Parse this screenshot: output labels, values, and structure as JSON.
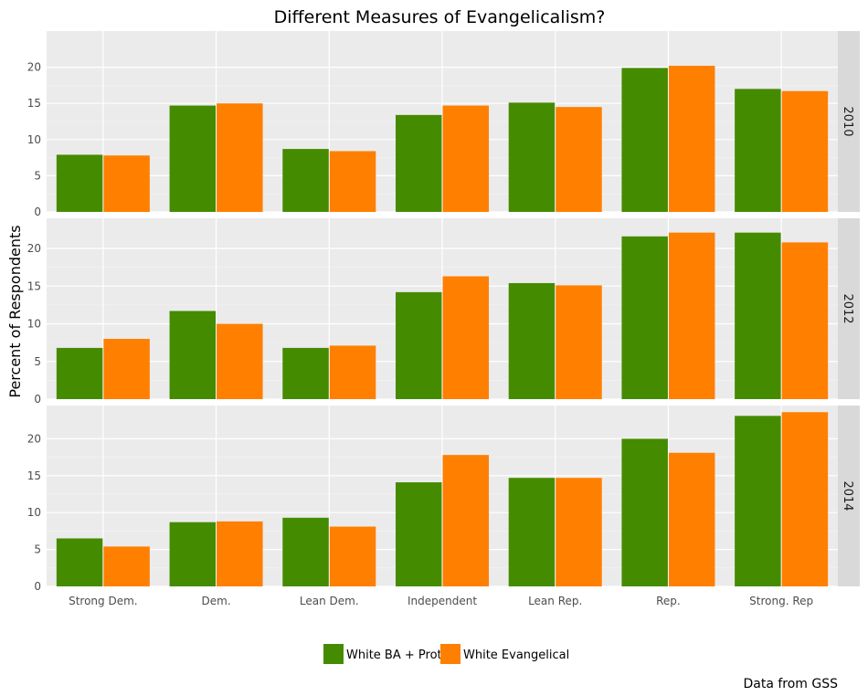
{
  "chart_data": {
    "type": "bar",
    "title": "Different Measures of Evangelicalism?",
    "xlabel": "",
    "ylabel": "Percent of Respondents",
    "caption": "Data from GSS",
    "categories": [
      "Strong Dem.",
      "Dem.",
      "Lean Dem.",
      "Independent",
      "Lean Rep.",
      "Rep.",
      "Strong. Rep"
    ],
    "colors": {
      "White BA + Prot": "#458b00",
      "White Evangelical": "#ff7f00"
    },
    "series_names": [
      "White BA + Prot",
      "White Evangelical"
    ],
    "panels": [
      {
        "label": "2010",
        "ylim": [
          0,
          25
        ],
        "yticks": [
          0,
          5,
          10,
          15,
          20
        ],
        "series": [
          {
            "name": "White BA + Prot",
            "values": [
              7.9,
              14.7,
              8.7,
              13.4,
              15.1,
              19.9,
              17.0
            ]
          },
          {
            "name": "White Evangelical",
            "values": [
              7.8,
              15.0,
              8.4,
              14.7,
              14.5,
              20.2,
              16.7
            ]
          }
        ]
      },
      {
        "label": "2012",
        "ylim": [
          0,
          24
        ],
        "yticks": [
          0,
          5,
          10,
          15,
          20
        ],
        "series": [
          {
            "name": "White BA + Prot",
            "values": [
              6.8,
              11.7,
              6.8,
              14.2,
              15.4,
              21.6,
              22.1
            ]
          },
          {
            "name": "White Evangelical",
            "values": [
              8.0,
              10.0,
              7.1,
              16.3,
              15.1,
              22.1,
              20.8
            ]
          }
        ]
      },
      {
        "label": "2014",
        "ylim": [
          0,
          24.5
        ],
        "yticks": [
          0,
          5,
          10,
          15,
          20
        ],
        "series": [
          {
            "name": "White BA + Prot",
            "values": [
              6.5,
              8.7,
              9.3,
              14.1,
              14.7,
              20.0,
              23.1
            ]
          },
          {
            "name": "White Evangelical",
            "values": [
              5.4,
              8.8,
              8.1,
              17.8,
              14.7,
              18.1,
              23.6
            ]
          }
        ]
      }
    ],
    "legend_position": "bottom",
    "grid": true
  }
}
